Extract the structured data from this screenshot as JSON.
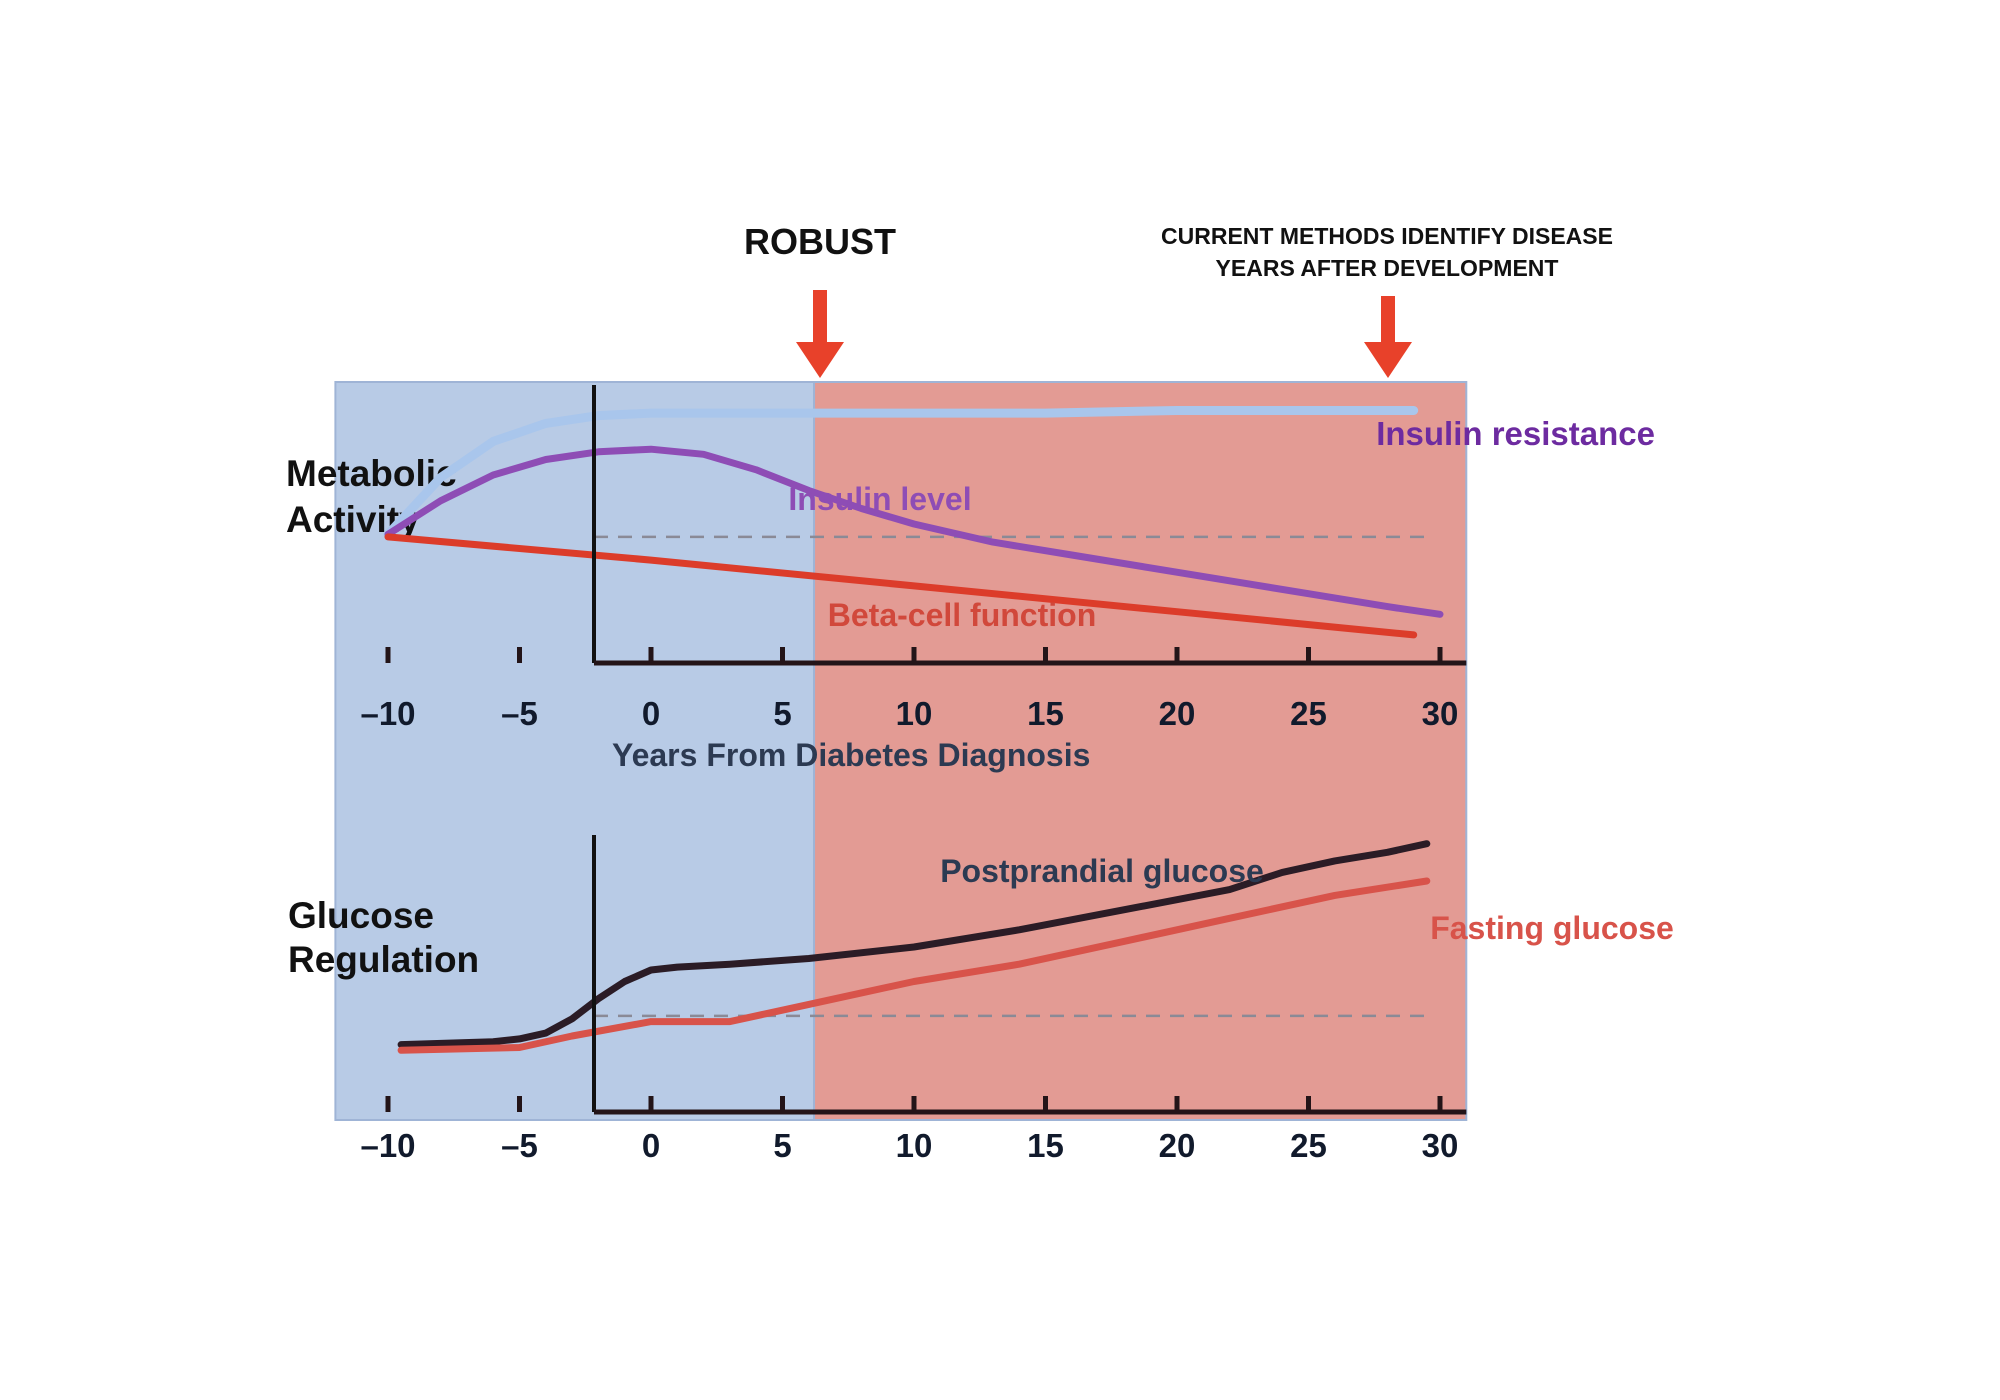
{
  "annotations": {
    "robust": "ROBUST",
    "current_methods_line1": "CURRENT METHODS IDENTIFY DISEASE",
    "current_methods_line2": "YEARS AFTER DEVELOPMENT"
  },
  "colors": {
    "early_region": "#b8cbe6",
    "late_region": "#e39b94",
    "arrow": "#e8412a",
    "insulin_resistance": "#6d2ba0",
    "insulin_level": "#8e4db5",
    "beta_cell": "#dc3c2a",
    "postprandial": "#2b1c26",
    "fasting": "#d8534a"
  },
  "chart_data": [
    {
      "type": "line",
      "ylabel_lines": [
        "Metabolic",
        "Activity"
      ],
      "xlabel": "Years From Diabetes Diagnosis",
      "xticks": [
        "–10",
        "–5",
        "0",
        "5",
        "10",
        "15",
        "20",
        "25",
        "30"
      ],
      "tick_values": [
        -10,
        -5,
        0,
        5,
        10,
        15,
        20,
        25,
        30
      ],
      "xlim": [
        -12,
        31
      ],
      "ylim": [
        0,
        100
      ],
      "reference_line": 45,
      "regions": [
        {
          "from": -12,
          "to": 6.2,
          "color": "#b8cbe6"
        },
        {
          "from": 6.2,
          "to": 31,
          "color": "#e39b94"
        }
      ],
      "series": [
        {
          "name": "Insulin resistance",
          "x": [
            -10,
            -8,
            -6,
            -4,
            -2,
            0,
            5,
            10,
            15,
            20,
            25,
            29
          ],
          "y": [
            46,
            68,
            82,
            89,
            92,
            93,
            93,
            93,
            93,
            94,
            94,
            94
          ]
        },
        {
          "name": "Insulin level",
          "x": [
            -10,
            -8,
            -6,
            -4,
            -2,
            0,
            2,
            4,
            6,
            8,
            10,
            13,
            16,
            19,
            22,
            25,
            28,
            30
          ],
          "y": [
            46,
            59,
            69,
            75,
            78,
            79,
            77,
            71,
            63,
            56,
            50,
            43,
            38,
            33,
            28,
            23,
            18,
            15
          ]
        },
        {
          "name": "Beta-cell function",
          "x": [
            -10,
            0,
            10,
            20,
            29
          ],
          "y": [
            45,
            36,
            26,
            16,
            7
          ]
        }
      ]
    },
    {
      "type": "line",
      "ylabel_lines": [
        "Glucose",
        "Regulation"
      ],
      "xticks": [
        "–10",
        "–5",
        "0",
        "5",
        "10",
        "15",
        "20",
        "25",
        "30"
      ],
      "tick_values": [
        -10,
        -5,
        0,
        5,
        10,
        15,
        20,
        25,
        30
      ],
      "xlim": [
        -12,
        31
      ],
      "ylim": [
        0,
        100
      ],
      "reference_line": 30,
      "series": [
        {
          "name": "Postprandial glucose",
          "x": [
            -9.5,
            -6,
            -5,
            -4,
            -3,
            -2,
            -1,
            0,
            1,
            3,
            6,
            10,
            14,
            18,
            22,
            24,
            26,
            28,
            29.5
          ],
          "y": [
            20,
            21,
            22,
            24,
            29,
            36,
            42,
            46,
            47,
            48,
            50,
            54,
            60,
            67,
            74,
            80,
            84,
            87,
            90
          ]
        },
        {
          "name": "Fasting glucose",
          "x": [
            -9.5,
            -5,
            -3,
            0,
            3,
            6,
            8,
            10,
            14,
            18,
            22,
            26,
            29.5
          ],
          "y": [
            18,
            19,
            23,
            28,
            28,
            34,
            38,
            42,
            48,
            56,
            64,
            72,
            77
          ]
        }
      ]
    }
  ]
}
